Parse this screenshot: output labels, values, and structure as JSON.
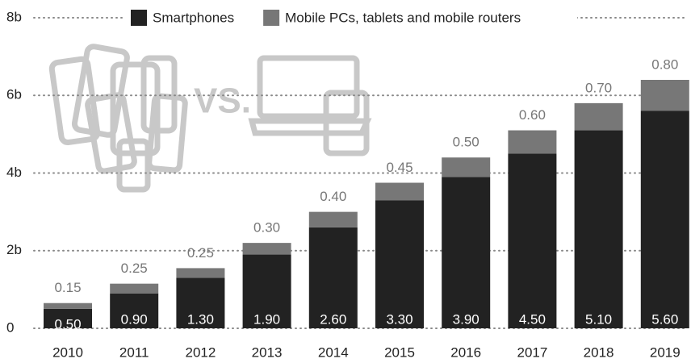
{
  "chart_data": {
    "type": "stacked_bar",
    "annotation": "VS.",
    "categories": [
      "2010",
      "2011",
      "2012",
      "2013",
      "2014",
      "2015",
      "2016",
      "2017",
      "2018",
      "2019"
    ],
    "series": [
      {
        "name": "Smartphones",
        "color": "#222222",
        "values": [
          0.5,
          0.9,
          1.3,
          1.9,
          2.6,
          3.3,
          3.9,
          4.5,
          5.1,
          5.6
        ],
        "value_labels": [
          "0.50",
          "0.90",
          "1.30",
          "1.90",
          "2.60",
          "3.30",
          "3.90",
          "4.50",
          "5.10",
          "5.60"
        ]
      },
      {
        "name": "Mobile PCs, tablets and mobile routers",
        "color": "#777777",
        "values": [
          0.15,
          0.25,
          0.25,
          0.3,
          0.4,
          0.45,
          0.5,
          0.6,
          0.7,
          0.8
        ],
        "value_labels": [
          "0.15",
          "0.25",
          "0.25",
          "0.30",
          "0.40",
          "0.45",
          "0.50",
          "0.60",
          "0.70",
          "0.80"
        ]
      }
    ],
    "ylim": [
      0,
      8
    ],
    "yticks": [
      0,
      {
        "value": 2,
        "label": "2b"
      },
      {
        "value": 4,
        "label": "4b"
      },
      {
        "value": 6,
        "label": "6b"
      },
      {
        "value": 8,
        "label": "8b"
      }
    ],
    "grid": true
  }
}
